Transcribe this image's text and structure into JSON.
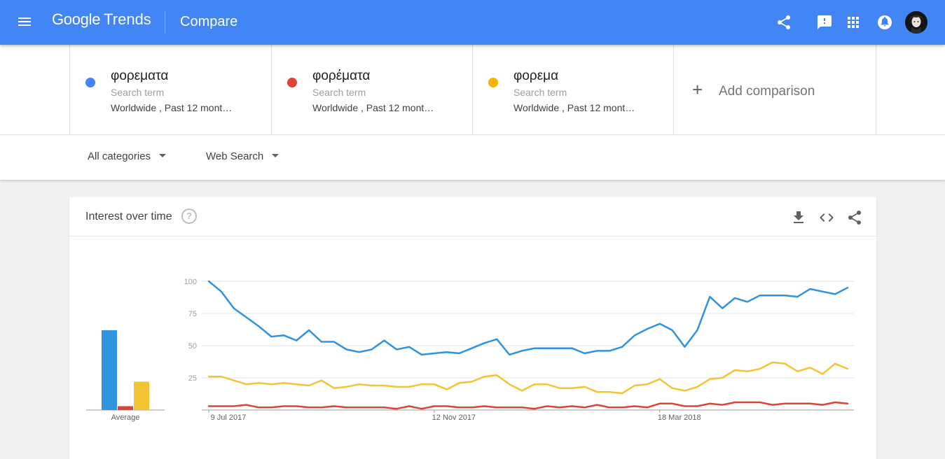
{
  "app": {
    "logo_google": "Google",
    "logo_trends": "Trends",
    "page_title": "Compare"
  },
  "header_icons": [
    "menu-icon",
    "share-icon",
    "feedback-icon",
    "apps-grid-icon",
    "notifications-icon",
    "account-avatar"
  ],
  "terms": [
    {
      "name": "φορεματα",
      "type": "Search term",
      "meta": "Worldwide , Past 12 mont…",
      "color": "#4285f4"
    },
    {
      "name": "φορέματα",
      "type": "Search term",
      "meta": "Worldwide , Past 12 mont…",
      "color": "#db4437"
    },
    {
      "name": "φορεμα",
      "type": "Search term",
      "meta": "Worldwide , Past 12 mont…",
      "color": "#f4b400"
    }
  ],
  "add_comparison": {
    "plus": "+",
    "label": "Add comparison"
  },
  "filters": {
    "category": "All categories",
    "search_type": "Web Search"
  },
  "card": {
    "title": "Interest over time",
    "help_glyph": "?",
    "icons": [
      "download-icon",
      "embed-code-icon",
      "share-icon"
    ]
  },
  "chart_data": {
    "type": "line",
    "y_ticks": [
      100,
      75,
      50,
      25
    ],
    "ylim": [
      0,
      100
    ],
    "x_tick_labels": [
      {
        "label": "9 Jul 2017",
        "index": 0
      },
      {
        "label": "12 Nov 2017",
        "index": 18
      },
      {
        "label": "18 Mar 2018",
        "index": 36
      }
    ],
    "average_label": "Average",
    "averages": [
      62,
      3,
      22
    ],
    "series": [
      {
        "color": "#2f93e0",
        "values": [
          100,
          92,
          79,
          72,
          65,
          57,
          58,
          54,
          62,
          53,
          53,
          47,
          45,
          47,
          54,
          47,
          49,
          43,
          44,
          45,
          44,
          48,
          52,
          55,
          43,
          46,
          48,
          48,
          48,
          48,
          44,
          46,
          46,
          49,
          58,
          63,
          67,
          62,
          49,
          62,
          88,
          79,
          87,
          84,
          89,
          89,
          89,
          88,
          94,
          92,
          90,
          95
        ]
      },
      {
        "color": "#db4437",
        "values": [
          3,
          3,
          3,
          4,
          2,
          2,
          3,
          3,
          2,
          2,
          3,
          2,
          2,
          2,
          2,
          1,
          3,
          1,
          3,
          3,
          2,
          2,
          3,
          2,
          2,
          2,
          1,
          3,
          2,
          3,
          2,
          4,
          2,
          2,
          3,
          2,
          5,
          5,
          3,
          3,
          5,
          4,
          6,
          6,
          6,
          4,
          5,
          5,
          5,
          4,
          6,
          5
        ]
      },
      {
        "color": "#f4c437",
        "values": [
          26,
          26,
          23,
          20,
          21,
          20,
          21,
          20,
          19,
          23,
          17,
          18,
          20,
          19,
          19,
          18,
          18,
          20,
          20,
          16,
          21,
          22,
          26,
          27,
          20,
          15,
          20,
          20,
          17,
          17,
          18,
          14,
          14,
          13,
          19,
          20,
          24,
          17,
          15,
          18,
          24,
          25,
          31,
          30,
          32,
          37,
          36,
          30,
          33,
          28,
          36,
          32
        ]
      }
    ]
  }
}
